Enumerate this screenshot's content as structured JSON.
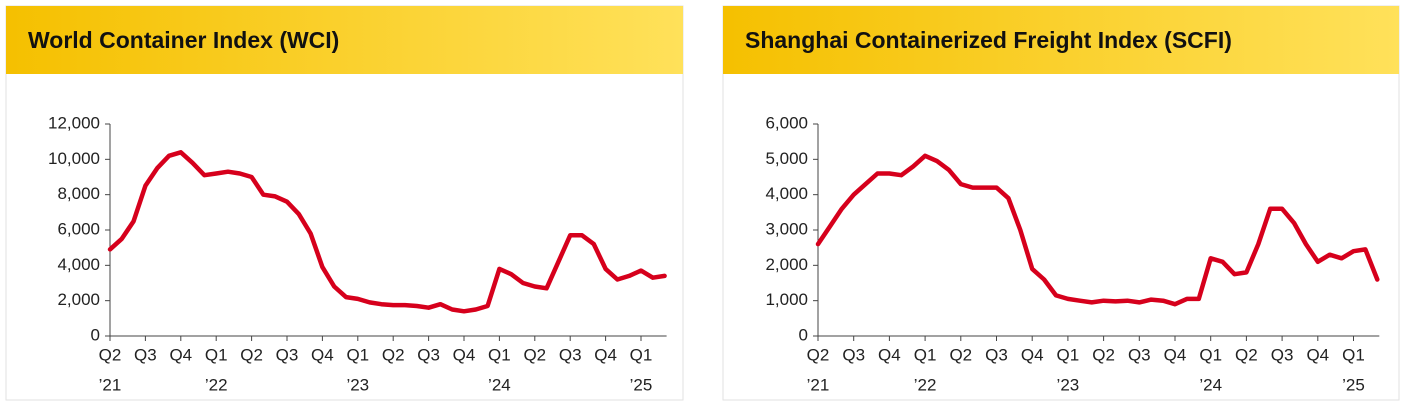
{
  "chart_data": [
    {
      "type": "line",
      "title": "World Container Index (WCI)",
      "color": "#d6001c",
      "categories": [
        "Q2",
        null,
        null,
        "Q3",
        null,
        null,
        "Q4",
        null,
        null,
        "Q1",
        null,
        null,
        "Q2",
        null,
        null,
        "Q3",
        null,
        null,
        "Q4",
        null,
        null,
        "Q1",
        null,
        null,
        "Q2",
        null,
        null,
        "Q3",
        null,
        null,
        "Q4",
        null,
        null,
        "Q1",
        null,
        null,
        "Q2",
        null,
        null,
        "Q3",
        null,
        null,
        "Q4",
        null,
        null,
        "Q1",
        null,
        null
      ],
      "year_labels": [
        "’21",
        null,
        null,
        null,
        null,
        null,
        null,
        null,
        null,
        "’22",
        null,
        null,
        null,
        null,
        null,
        null,
        null,
        null,
        null,
        null,
        null,
        "’23",
        null,
        null,
        null,
        null,
        null,
        null,
        null,
        null,
        null,
        null,
        null,
        "’24",
        null,
        null,
        null,
        null,
        null,
        null,
        null,
        null,
        null,
        null,
        null,
        "’25",
        null,
        null
      ],
      "values": [
        4900,
        5500,
        6500,
        8500,
        9500,
        10200,
        10400,
        9800,
        9100,
        9200,
        9300,
        9200,
        9000,
        8000,
        7900,
        7600,
        6900,
        5800,
        3900,
        2800,
        2200,
        2100,
        1900,
        1800,
        1750,
        1750,
        1700,
        1600,
        1800,
        1500,
        1400,
        1500,
        1700,
        3800,
        3500,
        3000,
        2800,
        2700,
        4200,
        5700,
        5700,
        5200,
        3800,
        3200,
        3400,
        3700,
        3300,
        3400
      ],
      "ylim": [
        0,
        12000
      ],
      "yticks": [
        0,
        {
          "value": 2000,
          "label": "2,000"
        },
        {
          "value": 4000,
          "label": "4,000"
        },
        {
          "value": 6000,
          "label": "6,000"
        },
        {
          "value": 8000,
          "label": "8,000"
        },
        {
          "value": 10000,
          "label": "10,000"
        },
        {
          "value": 12000,
          "label": "12,000"
        }
      ]
    },
    {
      "type": "line",
      "title": "Shanghai Containerized Freight Index (SCFI)",
      "color": "#d6001c",
      "categories": [
        "Q2",
        null,
        null,
        "Q3",
        null,
        null,
        "Q4",
        null,
        null,
        "Q1",
        null,
        null,
        "Q2",
        null,
        null,
        "Q3",
        null,
        null,
        "Q4",
        null,
        null,
        "Q1",
        null,
        null,
        "Q2",
        null,
        null,
        "Q3",
        null,
        null,
        "Q4",
        null,
        null,
        "Q1",
        null,
        null,
        "Q2",
        null,
        null,
        "Q3",
        null,
        null,
        "Q4",
        null,
        null,
        "Q1",
        null,
        null
      ],
      "year_labels": [
        "’21",
        null,
        null,
        null,
        null,
        null,
        null,
        null,
        null,
        "’22",
        null,
        null,
        null,
        null,
        null,
        null,
        null,
        null,
        null,
        null,
        null,
        "’23",
        null,
        null,
        null,
        null,
        null,
        null,
        null,
        null,
        null,
        null,
        null,
        "’24",
        null,
        null,
        null,
        null,
        null,
        null,
        null,
        null,
        null,
        null,
        null,
        "’25",
        null,
        null
      ],
      "values": [
        2600,
        3100,
        3600,
        4000,
        4300,
        4600,
        4600,
        4550,
        4800,
        5100,
        4950,
        4700,
        4300,
        4200,
        4200,
        4200,
        3900,
        3000,
        1900,
        1600,
        1150,
        1050,
        1000,
        950,
        1000,
        980,
        1000,
        950,
        1030,
        1000,
        900,
        1050,
        1050,
        2200,
        2100,
        1750,
        1800,
        2600,
        3600,
        3600,
        3200,
        2600,
        2100,
        2300,
        2200,
        2400,
        2450,
        1600
      ],
      "ylim": [
        0,
        6000
      ],
      "yticks": [
        0,
        {
          "value": 1000,
          "label": "1,000"
        },
        {
          "value": 2000,
          "label": "2,000"
        },
        {
          "value": 3000,
          "label": "3,000"
        },
        {
          "value": 4000,
          "label": "4,000"
        },
        {
          "value": 5000,
          "label": "5,000"
        },
        {
          "value": 6000,
          "label": "6,000"
        }
      ]
    }
  ]
}
